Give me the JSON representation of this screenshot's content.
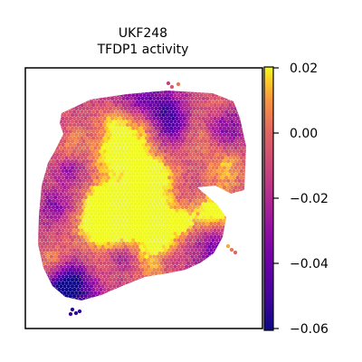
{
  "chart_data": {
    "type": "heatmap",
    "title": "UKF248",
    "subtitle": "TFDP1 activity",
    "xlabel": "",
    "ylabel": "",
    "grid": false,
    "colormap": "plasma",
    "colorbar": {
      "range": [
        -0.06,
        0.02
      ],
      "ticks": [
        0.02,
        0.0,
        -0.02,
        -0.04,
        -0.06
      ],
      "tick_labels": [
        "0.02",
        "0.00",
        "−0.02",
        "−0.04",
        "−0.06"
      ],
      "placement": "right"
    },
    "value_summary": {
      "typical": -0.01,
      "hotspots_max": 0.02,
      "border_min": -0.06
    }
  },
  "colors": {
    "frame": "#000000",
    "plasma_low": "#0d0887",
    "plasma_mid": "#cc4778",
    "plasma_high": "#f0f921"
  }
}
